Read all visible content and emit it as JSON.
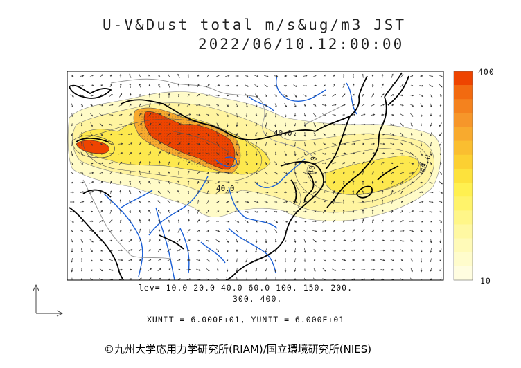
{
  "title": {
    "line1": "U-V&Dust total m/s&ug/m3 JST",
    "line2": "2022/06/10.12:00:00"
  },
  "contour_levels": {
    "line1": "lev= 10.0 20.0 40.0 60.0 100. 150. 200.",
    "line2": "300. 400."
  },
  "units_text": "XUNIT = 6.000E+01, YUNIT = 6.000E+01",
  "color_scale": {
    "max_label": "400",
    "min_label": "10",
    "colors_top_to_bottom": [
      "#ee4400",
      "#f26a10",
      "#f4821e",
      "#f6962a",
      "#f8aa2e",
      "#fabe30",
      "#fcd032",
      "#fde23c",
      "#fff050",
      "#fff36a",
      "#fff688",
      "#fff8a2",
      "#fffab8",
      "#fffccc",
      "#fffde0"
    ]
  },
  "map_labels": [
    "40.0",
    "40.0",
    "40.0",
    "40.0"
  ],
  "copyright": "©九州大学応用力学研究所(RIAM)/国立環境研究所(NIES)",
  "colors": {
    "coastline": "#000000",
    "rivers": "#1a5fd6",
    "border": "#9a9a9a",
    "wind_arrows": "#333333",
    "dust_low": "#fffbc8",
    "dust_mid": "#fde23c",
    "dust_high": "#ee4400"
  }
}
